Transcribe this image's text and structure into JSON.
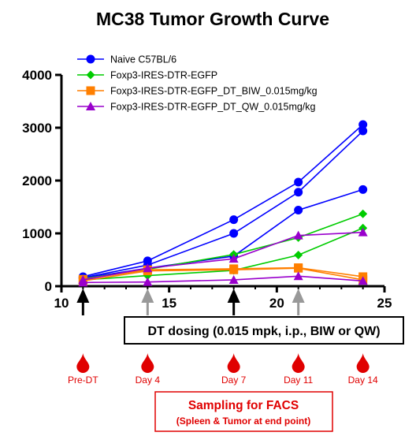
{
  "chart_data": {
    "type": "line",
    "title": "MC38 Tumor Growth Curve",
    "xlabel": "",
    "ylabel": "",
    "xlim": [
      10,
      25
    ],
    "ylim": [
      0,
      4000
    ],
    "x_ticks": [
      10,
      15,
      20,
      25
    ],
    "y_ticks": [
      0,
      1000,
      2000,
      3000,
      4000
    ],
    "grid": false,
    "legend_position": "top-left",
    "series": [
      {
        "name": "Naive C57BL/6",
        "color": "#0000ff",
        "marker": "circle",
        "lines": [
          [
            [
              11,
              180
            ],
            [
              14,
              480
            ],
            [
              18,
              1260
            ],
            [
              21,
              1970
            ],
            [
              24,
              3060
            ]
          ],
          [
            [
              11,
              160
            ],
            [
              14,
              400
            ],
            [
              18,
              1000
            ],
            [
              21,
              1780
            ],
            [
              24,
              2940
            ]
          ],
          [
            [
              11,
              150
            ],
            [
              14,
              340
            ],
            [
              18,
              570
            ],
            [
              21,
              1440
            ],
            [
              24,
              1830
            ]
          ]
        ]
      },
      {
        "name": "Foxp3-IRES-DTR-EGFP",
        "color": "#00cc00",
        "marker": "diamond",
        "lines": [
          [
            [
              11,
              140
            ],
            [
              14,
              320
            ],
            [
              18,
              600
            ],
            [
              21,
              920
            ],
            [
              24,
              1370
            ]
          ],
          [
            [
              11,
              120
            ],
            [
              14,
              200
            ],
            [
              18,
              300
            ],
            [
              21,
              590
            ],
            [
              24,
              1100
            ]
          ]
        ]
      },
      {
        "name": "Foxp3-IRES-DTR-EGFP_DT_BIW_0.015mg/kg",
        "color": "#ff7f00",
        "marker": "square",
        "lines": [
          [
            [
              11,
              130
            ],
            [
              14,
              310
            ],
            [
              18,
              330
            ],
            [
              21,
              350
            ],
            [
              24,
              180
            ]
          ],
          [
            [
              11,
              100
            ],
            [
              14,
              290
            ],
            [
              18,
              310
            ],
            [
              21,
              340
            ],
            [
              24,
              120
            ]
          ]
        ]
      },
      {
        "name": "Foxp3-IRES-DTR-EGFP_DT_QW_0.015mg/kg",
        "color": "#9900cc",
        "marker": "triangle",
        "lines": [
          [
            [
              11,
              120
            ],
            [
              14,
              340
            ],
            [
              18,
              520
            ],
            [
              21,
              960
            ],
            [
              24,
              1020
            ]
          ],
          [
            [
              11,
              70
            ],
            [
              14,
              80
            ],
            [
              18,
              120
            ],
            [
              21,
              190
            ],
            [
              24,
              100
            ]
          ]
        ]
      }
    ],
    "dosing_days": [
      11,
      14,
      18,
      21
    ],
    "dosing_arrow_colors": [
      "#000000",
      "#999999",
      "#000000",
      "#999999"
    ],
    "dosing_box_text": "DT dosing (0.015 mpk, i.p., BIW or QW)",
    "sampling": [
      {
        "x": 11,
        "label": "Pre-DT"
      },
      {
        "x": 14,
        "label": "Day 4"
      },
      {
        "x": 18,
        "label": "Day 7"
      },
      {
        "x": 21,
        "label": "Day 11"
      },
      {
        "x": 24,
        "label": "Day 14"
      }
    ],
    "sampling_color": "#e00000",
    "facs_title": "Sampling for FACS",
    "facs_subtitle": "(Spleen & Tumor at end point)"
  }
}
